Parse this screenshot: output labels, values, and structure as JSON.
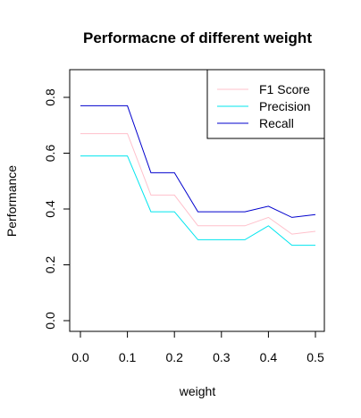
{
  "chart_data": {
    "type": "line",
    "title": "Performacne of different weight",
    "xlabel": "weight",
    "ylabel": "Performance",
    "xlim": [
      0.0,
      0.5
    ],
    "ylim": [
      0.0,
      0.9
    ],
    "x_ticks": [
      "0.0",
      "0.1",
      "0.2",
      "0.3",
      "0.4",
      "0.5"
    ],
    "y_ticks": [
      "0.0",
      "0.2",
      "0.4",
      "0.6",
      "0.8"
    ],
    "x": [
      0.0,
      0.05,
      0.1,
      0.15,
      0.2,
      0.25,
      0.3,
      0.35,
      0.4,
      0.45,
      0.5
    ],
    "series": [
      {
        "name": "F1 Score",
        "color": "#ffc0cb",
        "values": [
          0.67,
          0.67,
          0.67,
          0.45,
          0.45,
          0.34,
          0.34,
          0.34,
          0.37,
          0.31,
          0.32
        ]
      },
      {
        "name": "Precision",
        "color": "#00e5ee",
        "values": [
          0.59,
          0.59,
          0.59,
          0.39,
          0.39,
          0.29,
          0.29,
          0.29,
          0.34,
          0.27,
          0.27
        ]
      },
      {
        "name": "Recall",
        "color": "#0000cd",
        "values": [
          0.77,
          0.77,
          0.77,
          0.53,
          0.53,
          0.39,
          0.39,
          0.39,
          0.41,
          0.37,
          0.38
        ]
      }
    ],
    "grid": false,
    "legend": "top-right"
  }
}
